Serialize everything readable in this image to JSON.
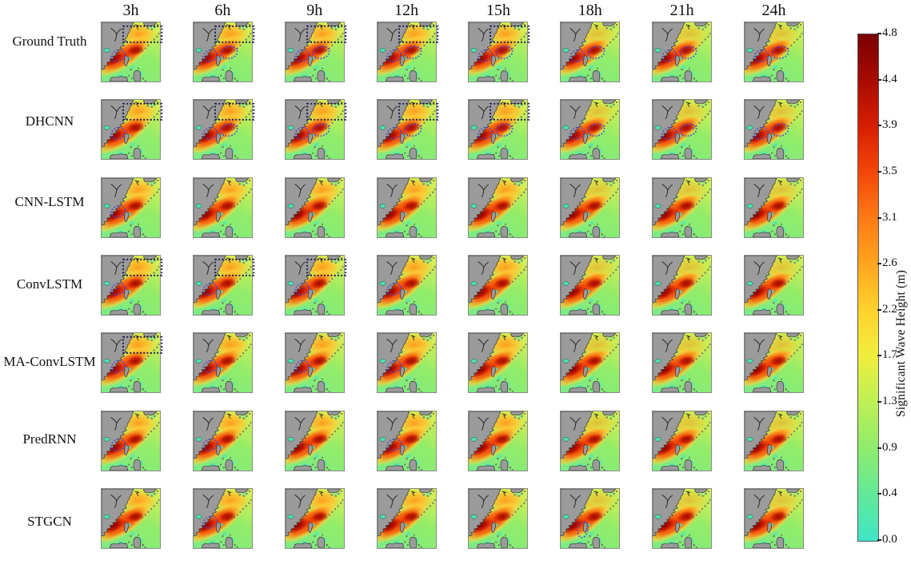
{
  "chart_data": {
    "type": "heatmap",
    "title": "",
    "rows": [
      "Ground Truth",
      "DHCNN",
      "CNN-LSTM",
      "ConvLSTM",
      "MA-ConvLSTM",
      "PredRNN",
      "STGCN"
    ],
    "columns": [
      "3h",
      "6h",
      "9h",
      "12h",
      "15h",
      "18h",
      "21h",
      "24h"
    ],
    "colorbar_label": "Significant Wave Height (m)",
    "colorbar_ticks": [
      4.8,
      4.4,
      3.9,
      3.5,
      3.1,
      2.6,
      2.2,
      1.7,
      1.3,
      0.9,
      0.4,
      0.0
    ],
    "colorbar_range": [
      0.0,
      4.8
    ],
    "legend_position": "right"
  },
  "columns": [
    {
      "label": "3h",
      "calmer_sea": false
    },
    {
      "label": "6h",
      "calmer_sea": false
    },
    {
      "label": "9h",
      "calmer_sea": false
    },
    {
      "label": "12h",
      "calmer_sea": false
    },
    {
      "label": "15h",
      "calmer_sea": false
    },
    {
      "label": "18h",
      "calmer_sea": true
    },
    {
      "label": "21h",
      "calmer_sea": true
    },
    {
      "label": "24h",
      "calmer_sea": true
    }
  ],
  "rows": [
    {
      "label": "Ground Truth",
      "tiles": [
        {
          "rect": true,
          "ellipses": [
            "left"
          ]
        },
        {
          "rect": true,
          "ellipses": [
            "left",
            "right"
          ]
        },
        {
          "rect": true,
          "ellipses": [
            "left",
            "right"
          ]
        },
        {
          "rect": true,
          "ellipses": [
            "left",
            "right"
          ]
        },
        {
          "rect": true,
          "ellipses": [
            "left",
            "right"
          ]
        },
        {
          "rect": false,
          "ellipses": [
            "left",
            "right"
          ]
        },
        {
          "rect": false,
          "ellipses": [
            "left",
            "right"
          ]
        },
        {
          "rect": false,
          "ellipses": [
            "left",
            "right"
          ]
        }
      ]
    },
    {
      "label": "DHCNN",
      "tiles": [
        {
          "rect": true,
          "ellipses": [
            "left"
          ]
        },
        {
          "rect": true,
          "ellipses": [
            "left",
            "right"
          ]
        },
        {
          "rect": true,
          "ellipses": [
            "left",
            "right"
          ]
        },
        {
          "rect": true,
          "ellipses": [
            "left",
            "right"
          ]
        },
        {
          "rect": true,
          "ellipses": [
            "left",
            "right"
          ]
        },
        {
          "rect": false,
          "ellipses": [
            "left",
            "right"
          ]
        },
        {
          "rect": false,
          "ellipses": [
            "left",
            "right"
          ]
        },
        {
          "rect": false,
          "ellipses": [
            "left",
            "right"
          ]
        }
      ]
    },
    {
      "label": "CNN-LSTM",
      "tiles": [
        {
          "rect": false,
          "ellipses": [
            "left"
          ]
        },
        {
          "rect": false,
          "ellipses": []
        },
        {
          "rect": false,
          "ellipses": []
        },
        {
          "rect": false,
          "ellipses": []
        },
        {
          "rect": false,
          "ellipses": []
        },
        {
          "rect": false,
          "ellipses": []
        },
        {
          "rect": false,
          "ellipses": []
        },
        {
          "rect": false,
          "ellipses": []
        }
      ]
    },
    {
      "label": "ConvLSTM",
      "tiles": [
        {
          "rect": true,
          "ellipses": [
            "left"
          ]
        },
        {
          "rect": true,
          "ellipses": [
            "left"
          ]
        },
        {
          "rect": true,
          "ellipses": [
            "left"
          ]
        },
        {
          "rect": false,
          "ellipses": [
            "left"
          ]
        },
        {
          "rect": false,
          "ellipses": []
        },
        {
          "rect": false,
          "ellipses": []
        },
        {
          "rect": false,
          "ellipses": []
        },
        {
          "rect": false,
          "ellipses": []
        }
      ]
    },
    {
      "label": "MA-ConvLSTM",
      "tiles": [
        {
          "rect": true,
          "ellipses": [
            "left"
          ]
        },
        {
          "rect": false,
          "ellipses": [
            "left"
          ]
        },
        {
          "rect": false,
          "ellipses": [
            "left"
          ]
        },
        {
          "rect": false,
          "ellipses": [
            "left"
          ]
        },
        {
          "rect": false,
          "ellipses": []
        },
        {
          "rect": false,
          "ellipses": []
        },
        {
          "rect": false,
          "ellipses": []
        },
        {
          "rect": false,
          "ellipses": []
        }
      ]
    },
    {
      "label": "PredRNN",
      "tiles": [
        {
          "rect": false,
          "ellipses": [
            "left"
          ]
        },
        {
          "rect": false,
          "ellipses": [
            "left"
          ]
        },
        {
          "rect": false,
          "ellipses": []
        },
        {
          "rect": false,
          "ellipses": [
            "left"
          ]
        },
        {
          "rect": false,
          "ellipses": []
        },
        {
          "rect": false,
          "ellipses": []
        },
        {
          "rect": false,
          "ellipses": []
        },
        {
          "rect": false,
          "ellipses": []
        }
      ]
    },
    {
      "label": "STGCN",
      "tiles": [
        {
          "rect": false,
          "ellipses": []
        },
        {
          "rect": false,
          "ellipses": [
            "left"
          ]
        },
        {
          "rect": false,
          "ellipses": []
        },
        {
          "rect": false,
          "ellipses": []
        },
        {
          "rect": false,
          "ellipses": []
        },
        {
          "rect": false,
          "ellipses": [
            "vertical"
          ]
        },
        {
          "rect": false,
          "ellipses": []
        },
        {
          "rect": false,
          "ellipses": []
        }
      ]
    }
  ],
  "colorbar": {
    "title": "Significant Wave Height (m)",
    "ticks": [
      "4.8",
      "4.4",
      "3.9",
      "3.5",
      "3.1",
      "2.6",
      "2.2",
      "1.7",
      "1.3",
      "0.9",
      "0.4",
      "0.0"
    ],
    "gradient_top_to_bottom": [
      "#7a0000",
      "#a80b00",
      "#d81e02",
      "#f44708",
      "#ff7b14",
      "#ffa51e",
      "#ffd32c",
      "#f0ee3c",
      "#bdf055",
      "#8fec6d",
      "#62e999",
      "#3fe6c6"
    ]
  },
  "map": {
    "land_color": "#9b9b9b",
    "coast_color": "#2e2e2e",
    "sea_calm_color": "#3fe6c6",
    "sea_mid_color": "#8aec6e",
    "sea_rough_color": "#f04606",
    "sea_peak_color": "#8f0300",
    "wash_color": "#b9ee55",
    "rect_annotation_color": "#15154a",
    "ellipse_annotation_color": "#4343d6",
    "tile_border_color": "#8a8a8a"
  }
}
